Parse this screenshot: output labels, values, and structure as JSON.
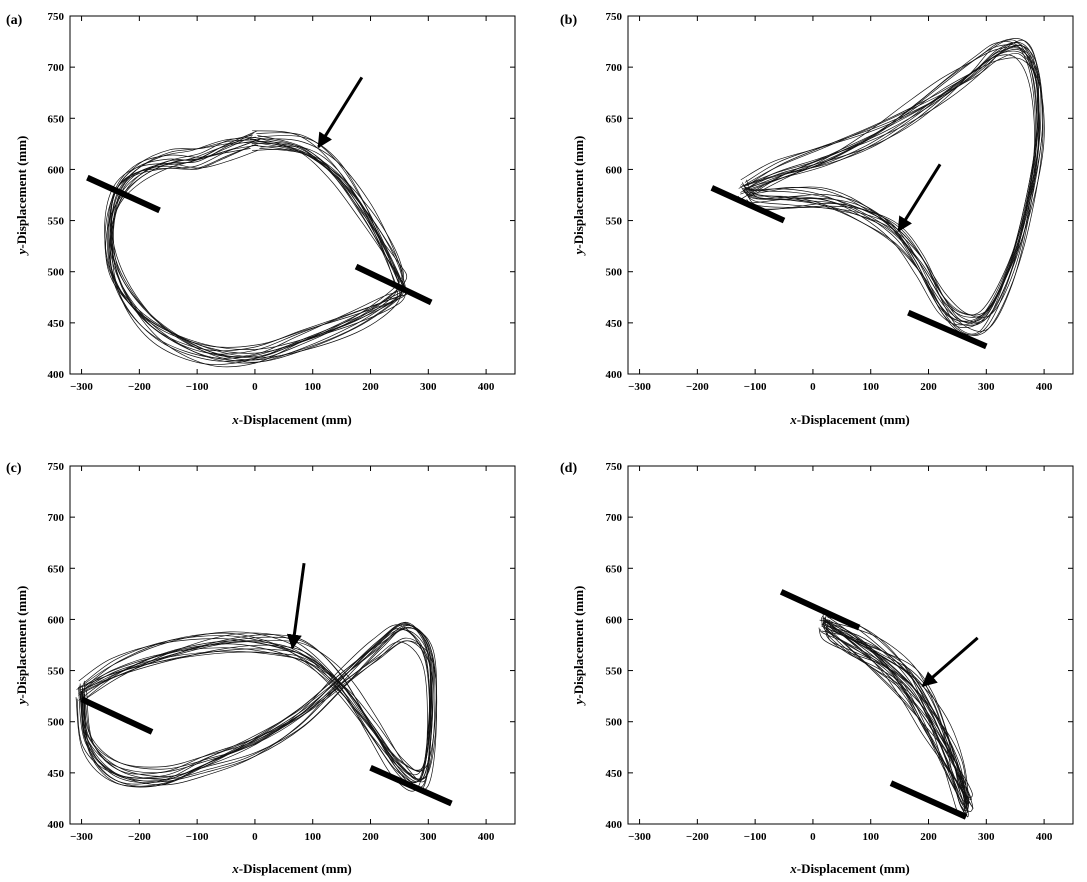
{
  "chart_data": [
    {
      "panel_label": "(a)",
      "type": "line",
      "xlabel_italic": "x",
      "xlabel_rest": "-Displacement (mm)",
      "ylabel_italic": "y",
      "ylabel_rest": "-Displacement (mm)",
      "xlim": [
        -320,
        450
      ],
      "ylim": [
        400,
        750
      ],
      "xticks": [
        -300,
        -200,
        -100,
        0,
        100,
        200,
        300,
        400
      ],
      "yticks": [
        400,
        450,
        500,
        550,
        600,
        650,
        700,
        750
      ],
      "grid": false,
      "series": [
        {
          "x": [
            0,
            80,
            140,
            190,
            225,
            248,
            255,
            230,
            170,
            80,
            0,
            -80,
            -160,
            -215,
            -245,
            -250,
            -235,
            -200,
            -150,
            -100,
            -50,
            0
          ],
          "y": [
            628,
            622,
            598,
            560,
            525,
            498,
            482,
            470,
            452,
            432,
            418,
            420,
            440,
            470,
            505,
            545,
            578,
            598,
            608,
            610,
            620,
            628
          ]
        }
      ],
      "bars": [
        {
          "x": [
            -290,
            -165
          ],
          "y": [
            592,
            560
          ]
        },
        {
          "x": [
            175,
            305
          ],
          "y": [
            505,
            470
          ]
        }
      ],
      "arrows": [
        {
          "from": [
            185,
            690
          ],
          "to": [
            110,
            622
          ]
        }
      ]
    },
    {
      "panel_label": "(b)",
      "type": "line",
      "xlabel_italic": "x",
      "xlabel_rest": "-Displacement (mm)",
      "ylabel_italic": "y",
      "ylabel_rest": "-Displacement (mm)",
      "xlim": [
        -320,
        450
      ],
      "ylim": [
        400,
        750
      ],
      "xticks": [
        -300,
        -200,
        -100,
        0,
        100,
        200,
        300,
        400
      ],
      "yticks": [
        400,
        450,
        500,
        550,
        600,
        650,
        700,
        750
      ],
      "grid": false,
      "series": [
        {
          "x": [
            -120,
            -60,
            20,
            100,
            170,
            230,
            280,
            320,
            360,
            385,
            390,
            370,
            340,
            300,
            260,
            225,
            185,
            140,
            80,
            20,
            -40,
            -100,
            -120
          ],
          "y": [
            580,
            596,
            612,
            632,
            655,
            678,
            698,
            715,
            718,
            690,
            630,
            560,
            500,
            455,
            450,
            468,
            508,
            540,
            560,
            570,
            572,
            572,
            580
          ]
        }
      ],
      "bars": [
        {
          "x": [
            -175,
            -50
          ],
          "y": [
            582,
            550
          ]
        },
        {
          "x": [
            165,
            300
          ],
          "y": [
            460,
            427
          ]
        }
      ],
      "arrows": [
        {
          "from": [
            220,
            605
          ],
          "to": [
            148,
            540
          ]
        }
      ]
    },
    {
      "panel_label": "(c)",
      "type": "line",
      "xlabel_italic": "x",
      "xlabel_rest": "-Displacement (mm)",
      "ylabel_italic": "y",
      "ylabel_rest": "-Displacement (mm)",
      "xlim": [
        -320,
        450
      ],
      "ylim": [
        400,
        750
      ],
      "xticks": [
        -300,
        -200,
        -100,
        0,
        100,
        200,
        300,
        400
      ],
      "yticks": [
        400,
        450,
        500,
        550,
        600,
        650,
        700,
        750
      ],
      "grid": false,
      "series": [
        {
          "x": [
            -300,
            -240,
            -150,
            -50,
            30,
            90,
            150,
            200,
            250,
            290,
            305,
            300,
            260,
            210,
            150,
            80,
            0,
            -80,
            -160,
            -240,
            -290,
            -300
          ],
          "y": [
            530,
            550,
            568,
            578,
            576,
            565,
            535,
            495,
            455,
            445,
            500,
            565,
            590,
            570,
            540,
            505,
            478,
            460,
            445,
            450,
            480,
            530
          ]
        }
      ],
      "bars": [
        {
          "x": [
            -300,
            -178
          ],
          "y": [
            522,
            490
          ]
        },
        {
          "x": [
            200,
            340
          ],
          "y": [
            455,
            420
          ]
        }
      ],
      "arrows": [
        {
          "from": [
            85,
            655
          ],
          "to": [
            65,
            572
          ]
        }
      ]
    },
    {
      "panel_label": "(d)",
      "type": "line",
      "xlabel_italic": "x",
      "xlabel_rest": "-Displacement (mm)",
      "ylabel_italic": "y",
      "ylabel_rest": "-Displacement (mm)",
      "xlim": [
        -320,
        450
      ],
      "ylim": [
        400,
        750
      ],
      "xticks": [
        -300,
        -200,
        -100,
        0,
        100,
        200,
        300,
        400
      ],
      "yticks": [
        400,
        450,
        500,
        550,
        600,
        650,
        700,
        750
      ],
      "grid": false,
      "series": [
        {
          "x": [
            20,
            70,
            120,
            170,
            205,
            230,
            250,
            262,
            268,
            262,
            250,
            225,
            195,
            160,
            115,
            65,
            25,
            20
          ],
          "y": [
            598,
            585,
            568,
            545,
            515,
            485,
            455,
            432,
            418,
            420,
            438,
            468,
            500,
            530,
            555,
            575,
            590,
            598
          ]
        }
      ],
      "bars": [
        {
          "x": [
            -55,
            80
          ],
          "y": [
            627,
            592
          ]
        },
        {
          "x": [
            135,
            265
          ],
          "y": [
            440,
            407
          ]
        }
      ],
      "arrows": [
        {
          "from": [
            285,
            582
          ],
          "to": [
            190,
            535
          ]
        }
      ]
    }
  ]
}
